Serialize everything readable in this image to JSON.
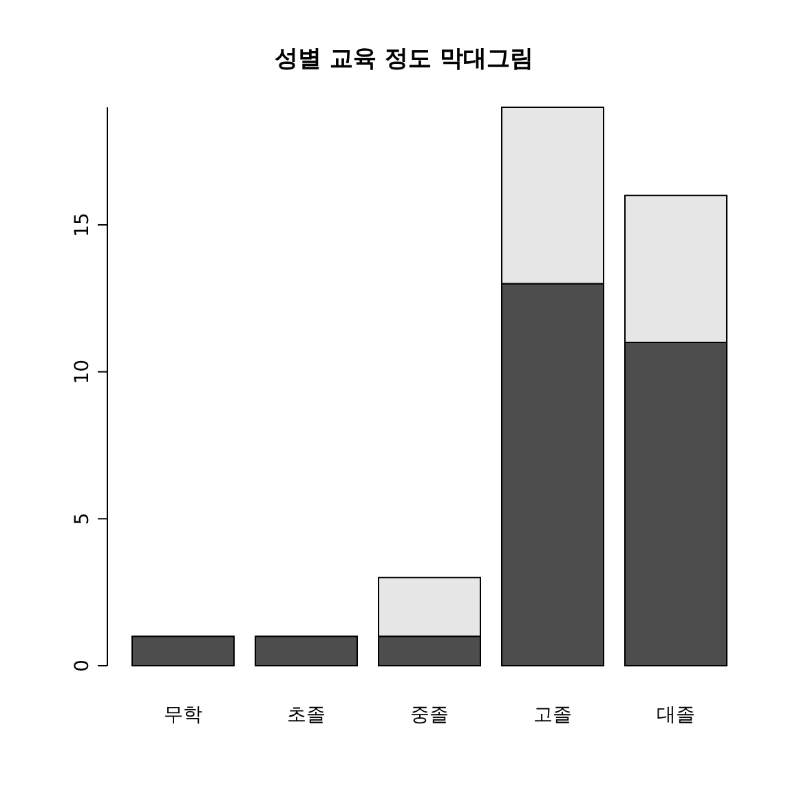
{
  "chart_data": {
    "type": "bar",
    "stacked": true,
    "title": "성별 교육 정도 막대그림",
    "categories": [
      "무학",
      "초졸",
      "중졸",
      "고졸",
      "대졸"
    ],
    "series": [
      {
        "color": "#4d4d4d",
        "values": [
          1,
          1,
          1,
          13,
          11
        ]
      },
      {
        "color": "#e6e6e6",
        "values": [
          0,
          0,
          2,
          6,
          5
        ]
      }
    ],
    "ylim": [
      0,
      19
    ],
    "yticks": [
      0,
      5,
      10,
      15
    ],
    "grid": false
  }
}
